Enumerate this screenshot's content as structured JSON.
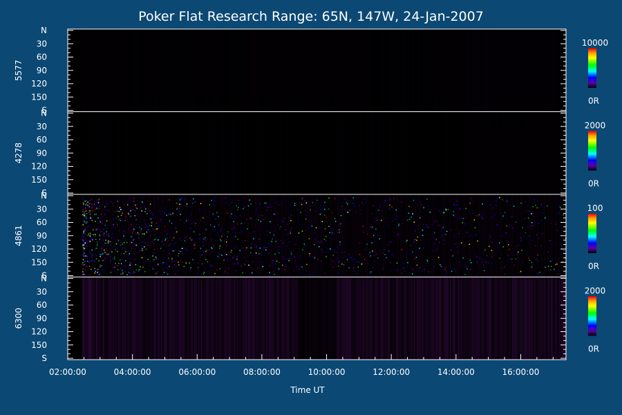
{
  "chart_data": {
    "type": "heatmap",
    "title": "Poker Flat Research Range: 65N, 147W, 24-Jan-2007",
    "xlabel": "Time UT",
    "x_ticks": [
      "02:00:00",
      "04:00:00",
      "06:00:00",
      "08:00:00",
      "10:00:00",
      "12:00:00",
      "14:00:00",
      "16:00:00"
    ],
    "x_tick_hours": [
      2,
      4,
      6,
      8,
      10,
      12,
      14,
      16
    ],
    "x_range_hours": [
      2.0,
      17.4
    ],
    "y_ticks": [
      "N",
      "30",
      "60",
      "90",
      "120",
      "150",
      "S"
    ],
    "y_tick_values": [
      0,
      30,
      60,
      90,
      120,
      150,
      180
    ],
    "y_range": [
      0,
      180
    ],
    "data_start_hour": 2.45,
    "panels": [
      {
        "name": "5577",
        "colorbar_max": "10000",
        "colorbar_min": "0R",
        "activity": "low",
        "base_intensity": 0.05
      },
      {
        "name": "4278",
        "colorbar_max": "2000",
        "colorbar_min": "0R",
        "activity": "low",
        "base_intensity": 0.03
      },
      {
        "name": "4861",
        "colorbar_max": "100",
        "colorbar_min": "0R",
        "activity": "noisy",
        "base_intensity": 0.15
      },
      {
        "name": "6300",
        "colorbar_max": "2000",
        "colorbar_min": "0R",
        "activity": "moderate",
        "base_intensity": 0.28
      }
    ],
    "colorbar_colors": [
      "#ff0000",
      "#ffa500",
      "#ffff00",
      "#00ff00",
      "#00ffff",
      "#0000ff",
      "#5a00a0",
      "#000000"
    ],
    "background_color": "#0b4873",
    "grid": false
  }
}
